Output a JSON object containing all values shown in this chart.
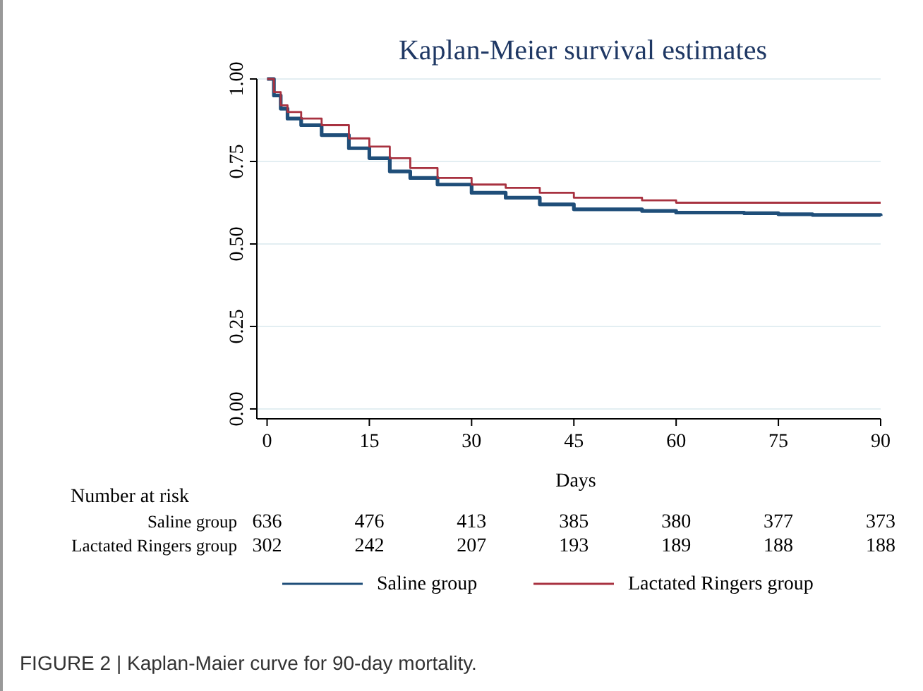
{
  "chart_data": {
    "type": "step",
    "title": "Kaplan-Meier survival estimates",
    "xlabel": "Days",
    "x": [
      0,
      1,
      2,
      3,
      5,
      8,
      12,
      15,
      18,
      21,
      25,
      30,
      35,
      40,
      45,
      55,
      60,
      70,
      75,
      80,
      90
    ],
    "series": [
      {
        "name": "Saline group",
        "color": "#1f4e79",
        "values": [
          1.0,
          0.95,
          0.91,
          0.88,
          0.86,
          0.83,
          0.79,
          0.76,
          0.72,
          0.7,
          0.68,
          0.655,
          0.64,
          0.62,
          0.605,
          0.6,
          0.595,
          0.593,
          0.59,
          0.588,
          0.585
        ]
      },
      {
        "name": "Lactated Ringers group",
        "color": "#a83240",
        "values": [
          1.0,
          0.96,
          0.92,
          0.9,
          0.88,
          0.86,
          0.82,
          0.795,
          0.76,
          0.73,
          0.7,
          0.68,
          0.67,
          0.655,
          0.64,
          0.632,
          0.625,
          0.625,
          0.625,
          0.625,
          0.625
        ]
      }
    ],
    "xlim": [
      -1.5,
      90
    ],
    "xticks": [
      0,
      15,
      30,
      45,
      60,
      75,
      90
    ],
    "ylim": [
      -0.03,
      1.0
    ],
    "yticks": [
      {
        "value": 0,
        "label": "0.00"
      },
      {
        "value": 0.25,
        "label": "0.25"
      },
      {
        "value": 0.5,
        "label": "0.50"
      },
      {
        "value": 0.75,
        "label": "0.75"
      },
      {
        "value": 1,
        "label": "1.00"
      }
    ],
    "grid": "y",
    "legend": "bottom",
    "annotations": [
      "Number at risk",
      "Saline group",
      "636",
      "476",
      "413",
      "385",
      "380",
      "377",
      "373",
      "Lactated Ringers group",
      "302",
      "242",
      "207",
      "193",
      "189",
      "188",
      "188",
      "FIGURE 2 | Kaplan-Maier curve for 90-day mortality."
    ]
  }
}
